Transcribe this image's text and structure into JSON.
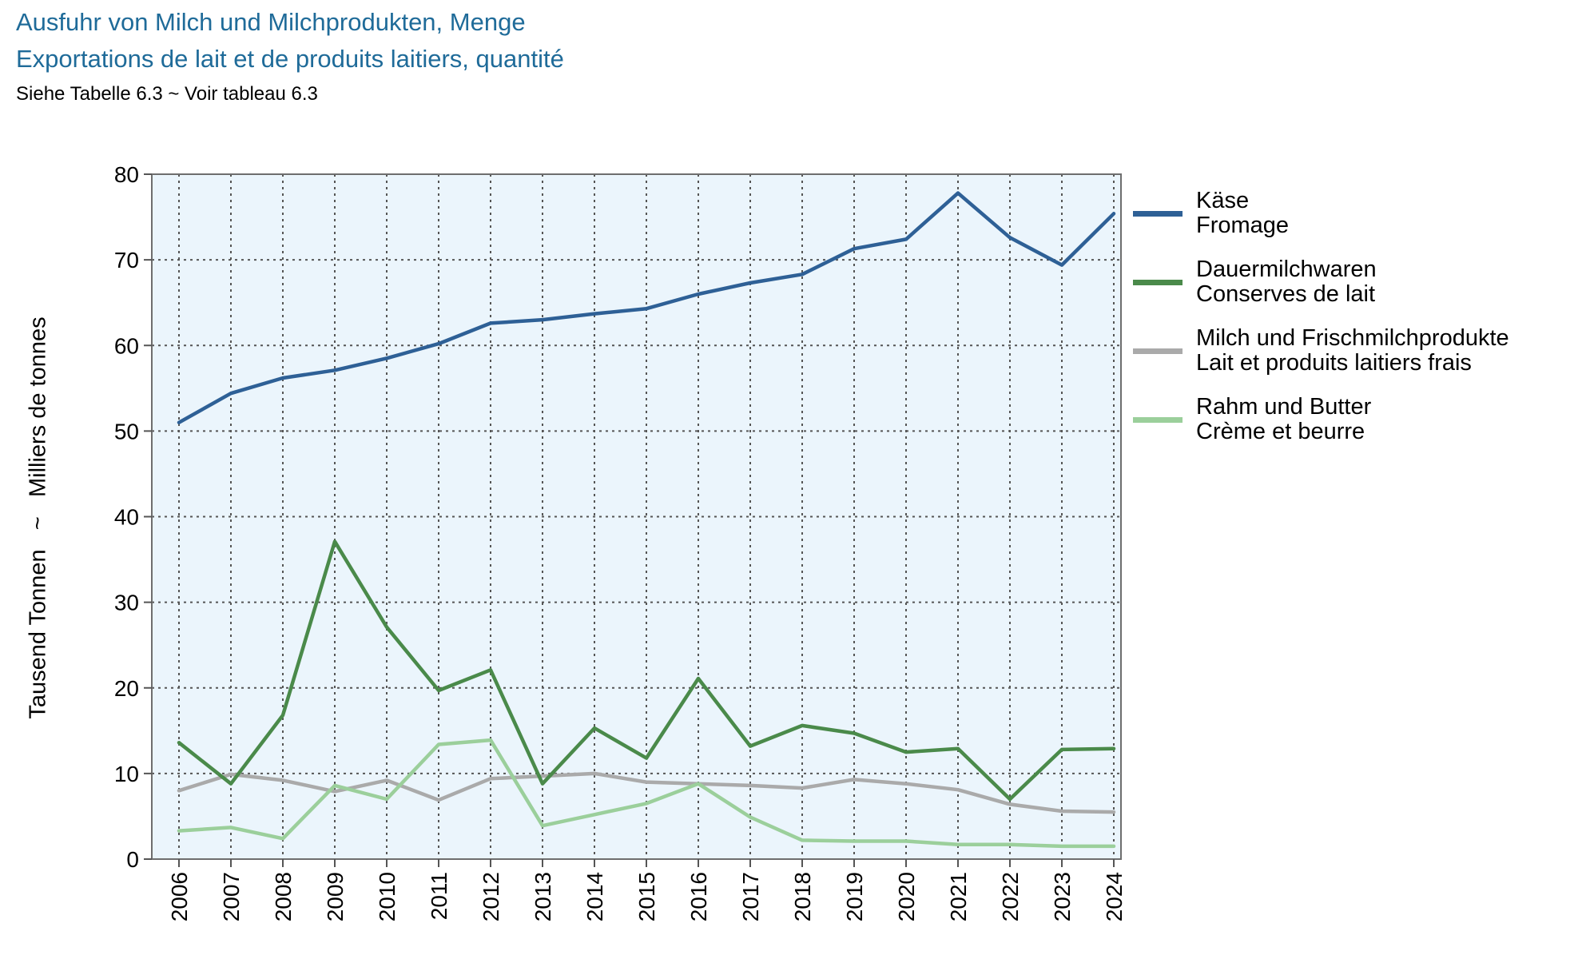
{
  "title_de": "Ausfuhr von Milch und Milchprodukten, Menge",
  "title_fr": "Exportations de lait et de produits laitiers, quantité",
  "subtitle": "Siehe Tabelle 6.3   ~   Voir tableau 6.3",
  "chart_data": {
    "type": "line",
    "ylabel": "Tausend Tonnen   ~   Milliers de tonnes",
    "xlabel": "",
    "ylim": [
      0,
      80
    ],
    "yticks": [
      0,
      10,
      20,
      30,
      40,
      50,
      60,
      70,
      80
    ],
    "grid": true,
    "legend_position": "right",
    "plot_background": "#ebf5fc",
    "x": [
      "2006",
      "2007",
      "2008",
      "2009",
      "2010",
      "2011",
      "2012",
      "2013",
      "2014",
      "2015",
      "2016",
      "2017",
      "2018",
      "2019",
      "2020",
      "2021",
      "2022",
      "2023",
      "2024"
    ],
    "series": [
      {
        "name": "Käse",
        "name2": "Fromage",
        "color": "#2e6096",
        "values": [
          51.0,
          54.4,
          56.2,
          57.1,
          58.5,
          60.2,
          62.6,
          63.0,
          63.7,
          64.3,
          66.0,
          67.3,
          68.3,
          71.3,
          72.4,
          77.8,
          72.6,
          69.4,
          75.4
        ]
      },
      {
        "name": "Dauermilchwaren",
        "name2": "Conserves de lait",
        "color": "#4a8a4a",
        "values": [
          13.6,
          8.8,
          16.8,
          37.1,
          27.1,
          19.7,
          22.1,
          8.8,
          15.3,
          11.8,
          21.1,
          13.2,
          15.6,
          14.7,
          12.5,
          12.9,
          7.0,
          12.8,
          12.9
        ]
      },
      {
        "name": "Milch und Frischmilchprodukte",
        "name2": "Lait et produits laitiers frais",
        "color": "#aaaaaa",
        "values": [
          8.0,
          9.9,
          9.2,
          7.9,
          9.2,
          6.9,
          9.4,
          9.7,
          10.0,
          9.0,
          8.8,
          8.6,
          8.3,
          9.3,
          8.8,
          8.1,
          6.4,
          5.6,
          5.5
        ]
      },
      {
        "name": "Rahm und Butter",
        "name2": "Crème et beurre",
        "color": "#9bcf9b",
        "values": [
          3.3,
          3.7,
          2.4,
          8.6,
          7.0,
          13.4,
          13.9,
          3.9,
          5.2,
          6.5,
          8.8,
          4.9,
          2.2,
          2.1,
          2.1,
          1.7,
          1.7,
          1.5,
          1.5
        ]
      }
    ]
  }
}
